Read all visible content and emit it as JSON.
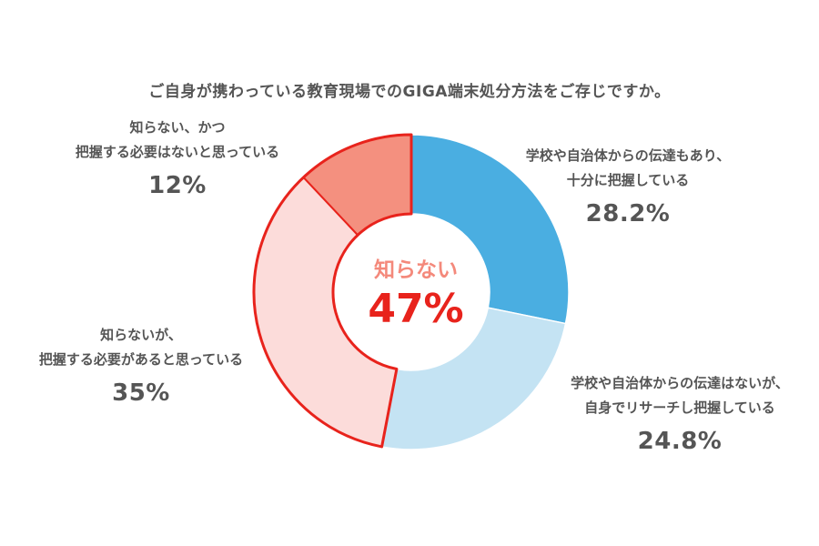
{
  "chart_data": {
    "type": "pie",
    "style": "donut",
    "title": "ご自身が携わっている教育現場でのGIGA端末処分方法をご存じですか。",
    "slices": [
      {
        "label_lines": [
          "学校や自治体からの伝達もあり、",
          "十分に把握している"
        ],
        "value": 28.2,
        "value_label": "28.2%",
        "color": "#4aaee1",
        "group": "know"
      },
      {
        "label_lines": [
          "学校や自治体からの伝達はないが、",
          "自身でリサーチし把握している"
        ],
        "value": 24.8,
        "value_label": "24.8%",
        "color": "#c4e3f3",
        "group": "know"
      },
      {
        "label_lines": [
          "知らないが、",
          "把握する必要があると思っている"
        ],
        "value": 35,
        "value_label": "35%",
        "color": "#fcdcda",
        "group": "dont-know"
      },
      {
        "label_lines": [
          "知らない、かつ",
          "把握する必要はないと思っている"
        ],
        "value": 12,
        "value_label": "12%",
        "color": "#f4907f",
        "group": "dont-know"
      }
    ],
    "highlight": {
      "label": "知らない",
      "value": "47%",
      "outline_color": "#e8231c",
      "label_color": "#f4897b",
      "value_color": "#e8231c"
    }
  }
}
